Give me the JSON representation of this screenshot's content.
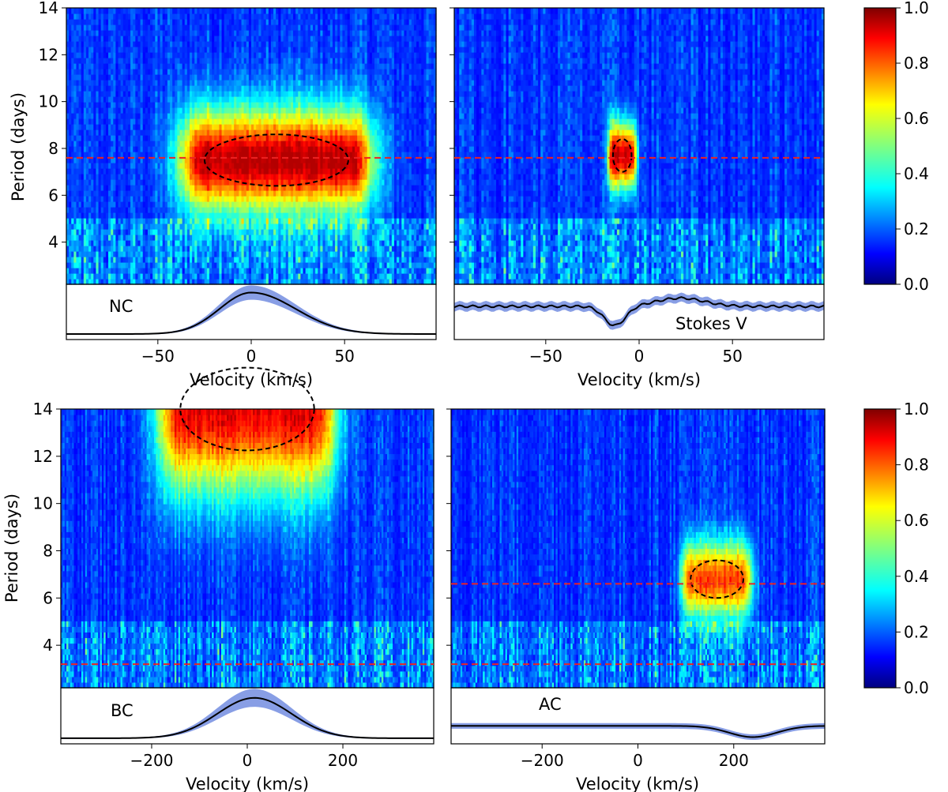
{
  "chart_data": [
    {
      "type": "heatmap",
      "id": "nc",
      "profile_label": "NC",
      "xlabel": "Velocity (km/s)",
      "ylabel": "Period (days)",
      "xlim": [
        -99,
        99
      ],
      "ylim": [
        2.2,
        14
      ],
      "xticks": [
        -50,
        0,
        50
      ],
      "yticks": [
        4,
        6,
        8,
        10,
        12,
        14
      ],
      "reference_periods": [
        7.6
      ],
      "signal": {
        "v_start": -25,
        "v_end": 52,
        "v_center": 15,
        "period_center": 7.5,
        "period_width": 2.2,
        "peak": 0.78
      },
      "profile": {
        "type": "emission",
        "center": 0,
        "width": 24,
        "shape": "asymmetric",
        "amplitude": 0.75,
        "band": 0.12
      }
    },
    {
      "type": "heatmap",
      "id": "stokes-v",
      "profile_label": "Stokes V",
      "xlabel": "Velocity (km/s)",
      "ylabel": "",
      "xlim": [
        -99,
        99
      ],
      "ylim": [
        2.2,
        14
      ],
      "xticks": [
        -50,
        0,
        50
      ],
      "yticks": [
        4,
        6,
        8,
        10,
        12,
        14
      ],
      "reference_periods": [
        7.6
      ],
      "signal": {
        "v_start": -14,
        "v_end": -4,
        "v_center": -8,
        "period_center": 7.7,
        "period_width": 1.4,
        "peak": 0.76
      },
      "profile": {
        "type": "zeeman",
        "neg_center": -13,
        "pos_center": 22,
        "amplitude": 0.35,
        "band": 0.08
      }
    },
    {
      "type": "heatmap",
      "id": "bc",
      "profile_label": "BC",
      "xlabel": "Velocity (km/s)",
      "ylabel": "Period (days)",
      "xlim": [
        -390,
        390
      ],
      "ylim": [
        2.2,
        14
      ],
      "xticks": [
        -200,
        0,
        200
      ],
      "yticks": [
        4,
        6,
        8,
        10,
        12,
        14
      ],
      "reference_periods": [
        3.2
      ],
      "signal": {
        "v_start": -140,
        "v_end": 140,
        "v_center": 0,
        "period_center": 14,
        "period_width": 3.5,
        "peak": 0.72
      },
      "profile": {
        "type": "emission",
        "center": 15,
        "width": 110,
        "shape": "gaussian",
        "amplitude": 0.72,
        "band": 0.15
      }
    },
    {
      "type": "heatmap",
      "id": "ac",
      "profile_label": "AC",
      "xlabel": "Velocity (km/s)",
      "ylabel": "",
      "xlim": [
        -390,
        390
      ],
      "ylim": [
        2.2,
        14
      ],
      "xticks": [
        -200,
        0,
        200
      ],
      "yticks": [
        4,
        6,
        8,
        10,
        12,
        14
      ],
      "reference_periods": [
        6.6,
        3.2
      ],
      "signal": {
        "v_start": 110,
        "v_end": 220,
        "v_center": 165,
        "period_center": 6.8,
        "period_width": 1.6,
        "peak": 0.62
      },
      "profile": {
        "type": "absorption",
        "center": 240,
        "width": 70,
        "amplitude": 0.2,
        "band": 0.05
      }
    }
  ],
  "colorbars": [
    {
      "ticks": [
        "0.0",
        "0.2",
        "0.4",
        "0.6",
        "0.8",
        "1.0"
      ],
      "range": [
        0,
        1
      ]
    },
    {
      "ticks": [
        "0.0",
        "0.2",
        "0.4",
        "0.6",
        "0.8",
        "1.0"
      ],
      "range": [
        0,
        1
      ]
    }
  ],
  "colors": {
    "reference_line": "#ee2222",
    "contour": "#000000",
    "profile_line": "#000000",
    "profile_band": "#7b93e2"
  }
}
